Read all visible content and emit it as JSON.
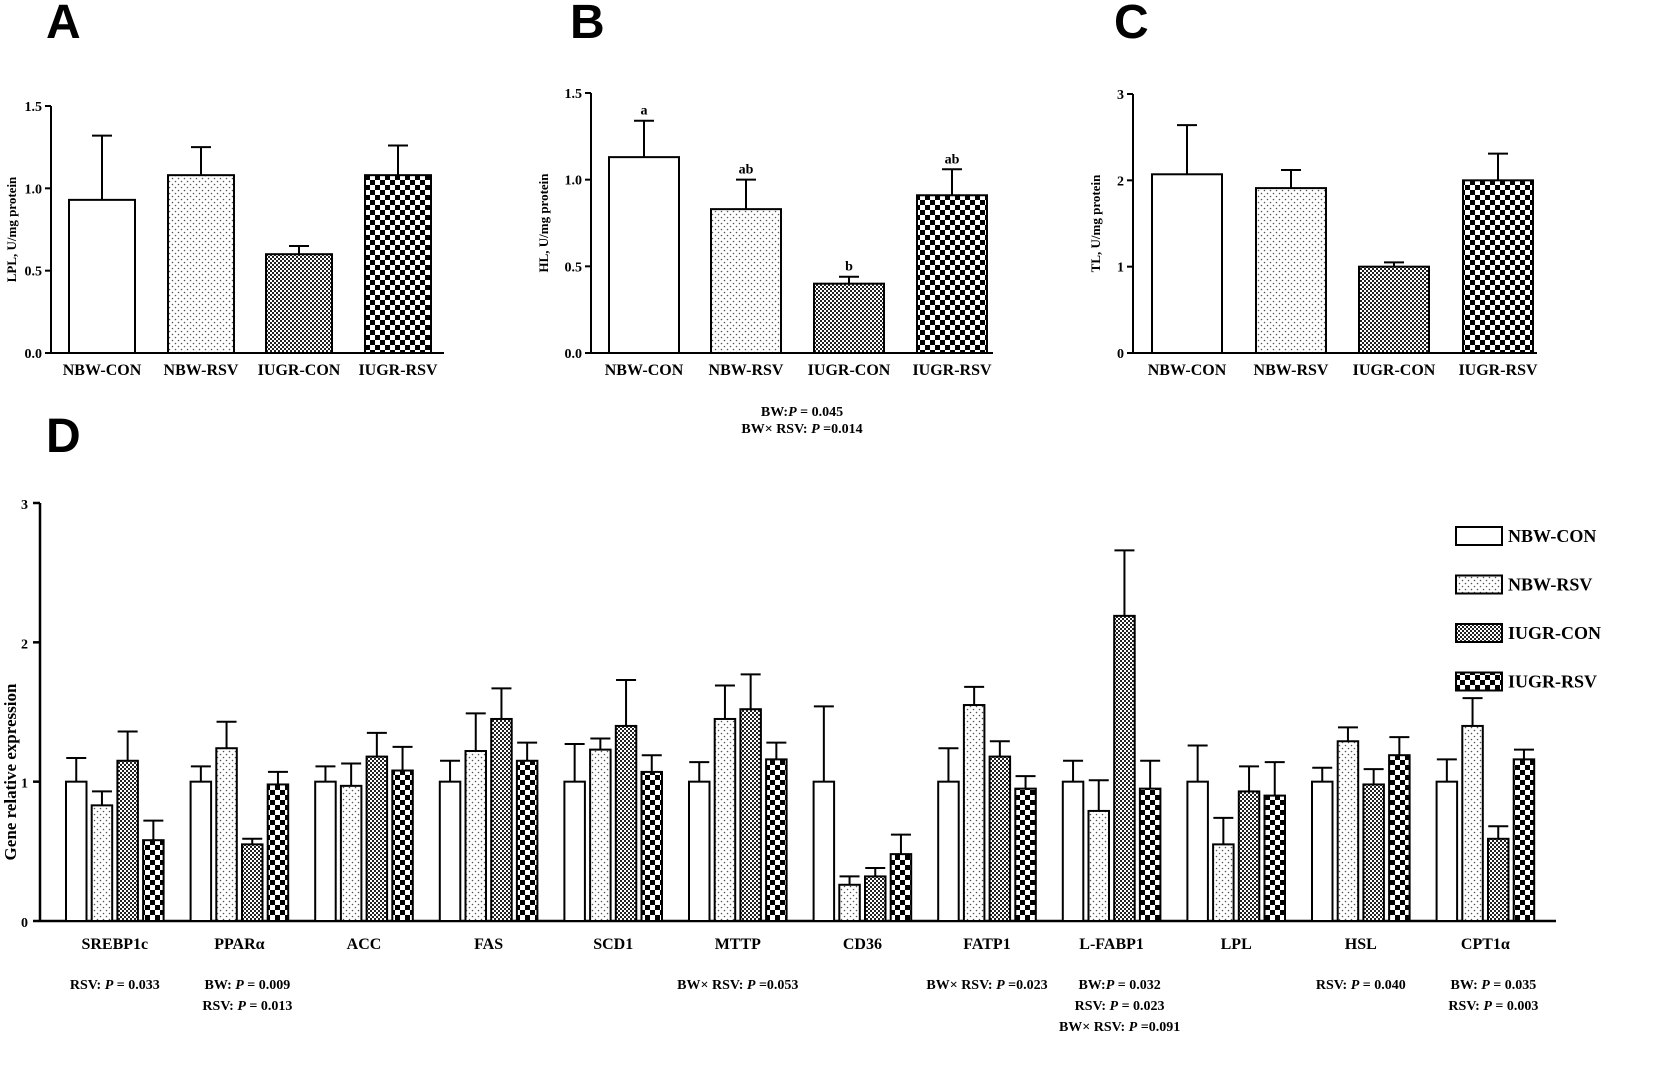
{
  "group_labels": [
    "NBW-CON",
    "NBW-RSV",
    "IUGR-CON",
    "IUGR-RSV"
  ],
  "chart_data": [
    {
      "panel": "A",
      "type": "bar",
      "ylabel": "LPL, U/mg protein",
      "ylim": [
        0,
        1.5
      ],
      "yticks": [
        "0.0",
        "0.5",
        "1.0",
        "1.5"
      ],
      "categories": [
        "NBW-CON",
        "NBW-RSV",
        "IUGR-CON",
        "IUGR-RSV"
      ],
      "values": [
        0.93,
        1.08,
        0.6,
        1.08
      ],
      "errors": [
        0.39,
        0.17,
        0.05,
        0.18
      ],
      "letters": [
        "",
        "",
        "",
        ""
      ],
      "notes": []
    },
    {
      "panel": "B",
      "type": "bar",
      "ylabel": "HL, U/mg protein",
      "ylim": [
        0,
        1.5
      ],
      "yticks": [
        "0.0",
        "0.5",
        "1.0",
        "1.5"
      ],
      "categories": [
        "NBW-CON",
        "NBW-RSV",
        "IUGR-CON",
        "IUGR-RSV"
      ],
      "values": [
        1.13,
        0.83,
        0.4,
        0.91
      ],
      "errors": [
        0.21,
        0.17,
        0.04,
        0.15
      ],
      "letters": [
        "a",
        "ab",
        "b",
        "ab"
      ],
      "notes": [
        [
          "BW:",
          "P",
          " = 0.045"
        ],
        [
          "BW× RSV: ",
          "P",
          " =0.014"
        ]
      ]
    },
    {
      "panel": "C",
      "type": "bar",
      "ylabel": "TL, U/mg protein",
      "ylim": [
        0,
        3
      ],
      "yticks": [
        "0",
        "1",
        "2",
        "3"
      ],
      "categories": [
        "NBW-CON",
        "NBW-RSV",
        "IUGR-CON",
        "IUGR-RSV"
      ],
      "values": [
        2.07,
        1.91,
        1.0,
        2.0
      ],
      "errors": [
        0.57,
        0.21,
        0.05,
        0.31
      ],
      "letters": [
        "",
        "",
        "",
        ""
      ],
      "notes": []
    },
    {
      "panel": "D",
      "type": "bar",
      "ylabel": "Gene relative expression",
      "ylim": [
        0,
        3
      ],
      "yticks": [
        "0",
        "1",
        "2",
        "3"
      ],
      "categories": [
        "SREBP1c",
        "PPARα",
        "ACC",
        "FAS",
        "SCD1",
        "MTTP",
        "CD36",
        "FATP1",
        "L-FABP1",
        "LPL",
        "HSL",
        "CPT1α"
      ],
      "legend": [
        "NBW-CON",
        "NBW-RSV",
        "IUGR-CON",
        "IUGR-RSV"
      ],
      "series": [
        {
          "name": "NBW-CON",
          "values": [
            1.0,
            1.0,
            1.0,
            1.0,
            1.0,
            1.0,
            1.0,
            1.0,
            1.0,
            1.0,
            1.0,
            1.0
          ],
          "errors": [
            0.17,
            0.11,
            0.11,
            0.15,
            0.27,
            0.14,
            0.54,
            0.24,
            0.15,
            0.26,
            0.1,
            0.16
          ]
        },
        {
          "name": "NBW-RSV",
          "values": [
            0.83,
            1.24,
            0.97,
            1.22,
            1.23,
            1.45,
            0.26,
            1.55,
            0.79,
            0.55,
            1.29,
            1.4
          ],
          "errors": [
            0.1,
            0.19,
            0.16,
            0.27,
            0.08,
            0.24,
            0.06,
            0.13,
            0.22,
            0.19,
            0.1,
            0.2
          ]
        },
        {
          "name": "IUGR-CON",
          "values": [
            1.15,
            0.55,
            1.18,
            1.45,
            1.4,
            1.52,
            0.32,
            1.18,
            2.19,
            0.93,
            0.98,
            0.59
          ],
          "errors": [
            0.21,
            0.04,
            0.17,
            0.22,
            0.33,
            0.25,
            0.06,
            0.11,
            0.47,
            0.18,
            0.11,
            0.09
          ]
        },
        {
          "name": "IUGR-RSV",
          "values": [
            0.58,
            0.98,
            1.08,
            1.15,
            1.07,
            1.16,
            0.48,
            0.95,
            0.95,
            0.9,
            1.19,
            1.16
          ],
          "errors": [
            0.14,
            0.09,
            0.17,
            0.13,
            0.12,
            0.12,
            0.14,
            0.09,
            0.2,
            0.24,
            0.13,
            0.07
          ]
        }
      ],
      "notes": [
        {
          "category": "SREBP1c",
          "lines": [
            [
              "RSV: ",
              "P",
              " = 0.033"
            ]
          ]
        },
        {
          "category": "PPARα",
          "lines": [
            [
              "BW: ",
              "P",
              " = 0.009"
            ],
            [
              "RSV: ",
              "P",
              " = 0.013"
            ]
          ]
        },
        {
          "category": "MTTP",
          "lines": [
            [
              "BW× RSV: ",
              "P",
              " =0.053"
            ]
          ]
        },
        {
          "category": "FATP1",
          "lines": [
            [
              "BW× RSV: ",
              "P",
              " =0.023"
            ]
          ]
        },
        {
          "category": "L-FABP1",
          "lines": [
            [
              "BW:",
              "P",
              " = 0.032"
            ],
            [
              "RSV: ",
              "P",
              " = 0.023"
            ],
            [
              "BW× RSV: ",
              "P",
              " =0.091"
            ]
          ]
        },
        {
          "category": "HSL",
          "lines": [
            [
              "RSV: ",
              "P",
              " = 0.040"
            ]
          ]
        },
        {
          "category": "CPT1α",
          "lines": [
            [
              "BW: ",
              "P",
              " = 0.035"
            ],
            [
              "RSV: ",
              "P",
              " = 0.003"
            ]
          ]
        }
      ]
    }
  ]
}
